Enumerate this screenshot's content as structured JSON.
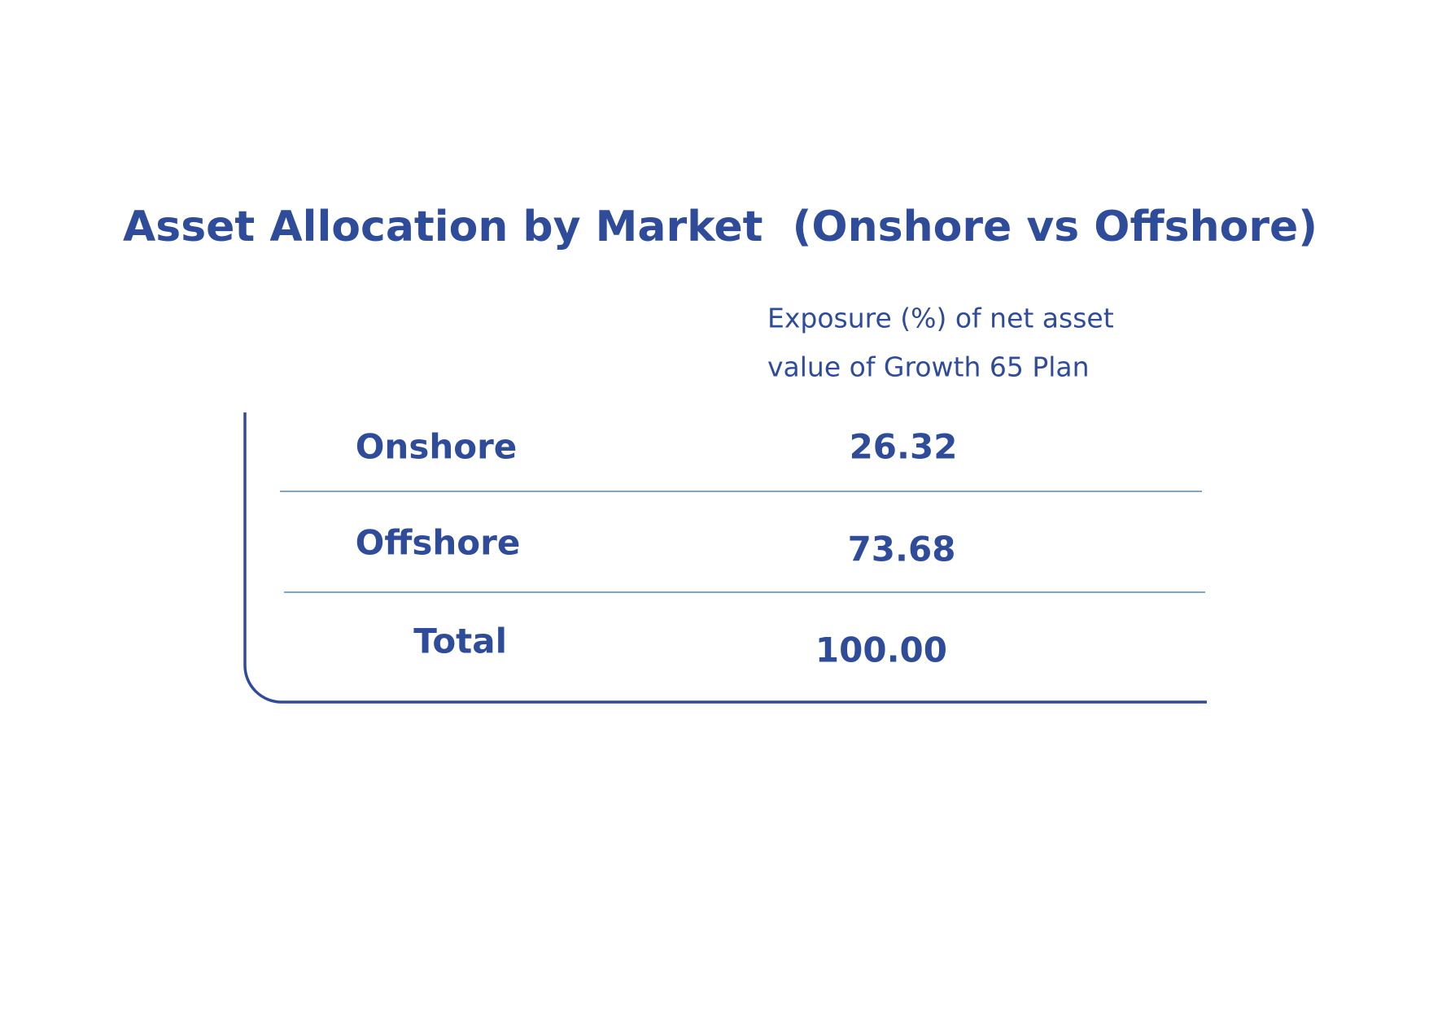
{
  "header": {
    "title": "Asset Allocation by Market  (Onshore vs Offshore)"
  },
  "table": {
    "column_header": [
      "Exposure (%) of net asset",
      "value of Growth 65 Plan"
    ],
    "rows": [
      [
        "Onshore",
        "26.32"
      ],
      [
        "Offshore",
        "73.68"
      ],
      [
        "Total",
        "100.00"
      ]
    ]
  }
}
